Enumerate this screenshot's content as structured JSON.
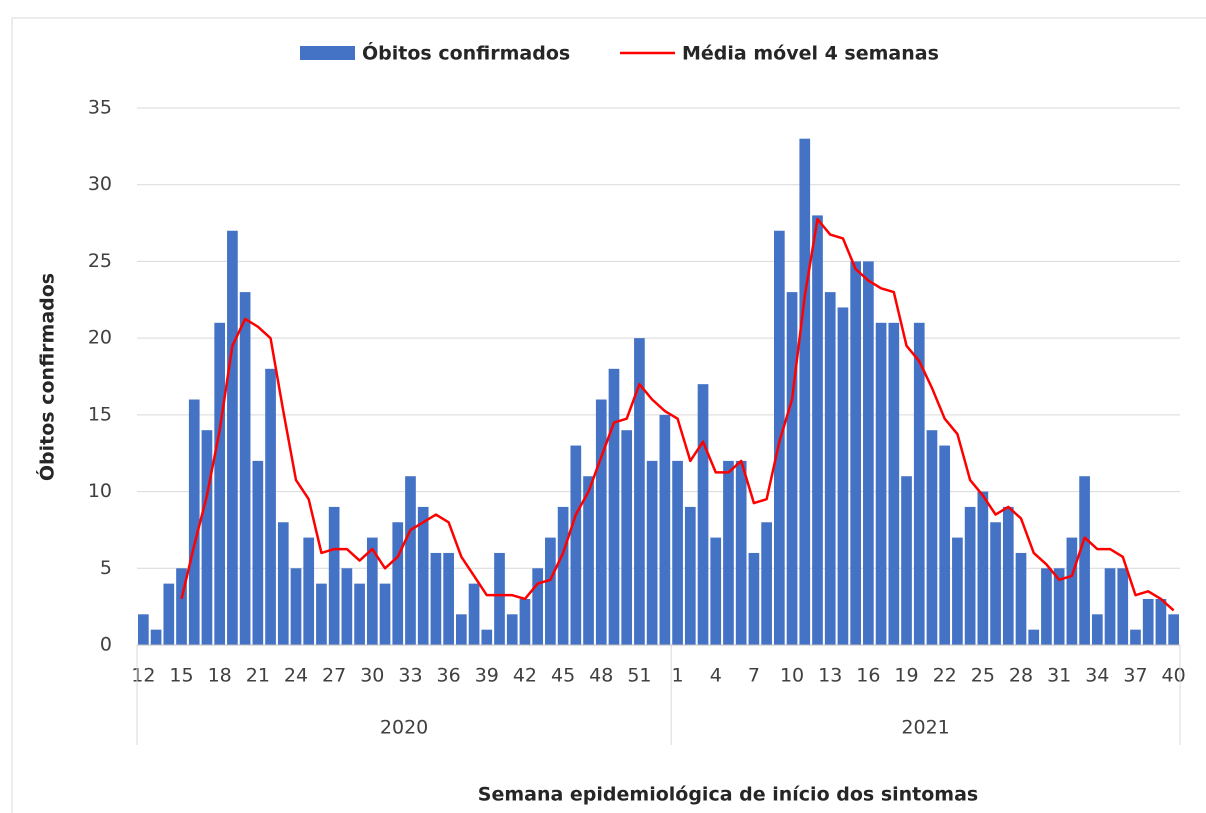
{
  "chart_data": {
    "type": "bar_line",
    "x_label": "Semana epidemiológica de início dos sintomas",
    "y_label": "Óbitos confirmados",
    "categories": [
      "12",
      null,
      null,
      "15",
      null,
      null,
      "18",
      null,
      null,
      "21",
      null,
      null,
      "24",
      null,
      null,
      "27",
      null,
      null,
      "30",
      null,
      null,
      "33",
      null,
      null,
      "36",
      null,
      null,
      "39",
      null,
      null,
      "42",
      null,
      null,
      "45",
      null,
      null,
      "48",
      null,
      null,
      "51",
      null,
      null,
      "1",
      null,
      null,
      "4",
      null,
      null,
      "7",
      null,
      null,
      "10",
      null,
      null,
      "13",
      null,
      null,
      "16",
      null,
      null,
      "19",
      null,
      null,
      "22",
      null,
      null,
      "25",
      null,
      null,
      "28",
      null,
      null,
      "31",
      null,
      null,
      "34",
      null,
      null,
      "37",
      null,
      null,
      "40"
    ],
    "x_groups": [
      {
        "label": "2020",
        "size": 42
      },
      {
        "label": "2021",
        "size": 40
      }
    ],
    "series": [
      {
        "name": "Óbitos confirmados",
        "kind": "bar",
        "color": "#4472c4",
        "values": [
          2,
          1,
          4,
          5,
          16,
          14,
          21,
          27,
          23,
          12,
          18,
          8,
          5,
          7,
          4,
          9,
          5,
          4,
          7,
          4,
          8,
          11,
          9,
          6,
          6,
          2,
          4,
          1,
          6,
          2,
          3,
          5,
          7,
          9,
          13,
          11,
          16,
          18,
          14,
          20,
          12,
          15,
          12,
          9,
          17,
          7,
          12,
          12,
          6,
          8,
          27,
          23,
          33,
          28,
          23,
          22,
          25,
          25,
          21,
          21,
          11,
          21,
          14,
          13,
          7,
          9,
          10,
          8,
          9,
          6,
          1,
          5,
          5,
          7,
          11,
          2,
          5,
          5,
          1,
          3,
          3,
          2
        ]
      },
      {
        "name": "Média móvel 4 semanas",
        "kind": "line",
        "color": "#ff0000",
        "values": [
          null,
          null,
          null,
          3,
          6.5,
          9.75,
          14,
          19.5,
          21.25,
          20.75,
          20,
          15.25,
          10.75,
          9.5,
          6,
          6.25,
          6.25,
          5.5,
          6.25,
          5,
          5.75,
          7.5,
          8,
          8.5,
          8,
          5.75,
          4.5,
          3.25,
          3.25,
          3.25,
          3,
          4,
          4.25,
          6,
          8.5,
          10,
          12.25,
          14.5,
          14.75,
          17,
          16,
          15.25,
          14.75,
          12,
          13.25,
          11.25,
          11.25,
          12,
          9.25,
          9.5,
          13.25,
          16,
          22.75,
          27.75,
          26.75,
          26.5,
          24.5,
          23.75,
          23.25,
          23,
          19.5,
          18.5,
          16.75,
          14.75,
          13.75,
          10.75,
          9.75,
          8.5,
          9,
          8.25,
          6,
          5.25,
          4.25,
          4.5,
          7,
          6.25,
          6.25,
          5.75,
          3.25,
          3.5,
          3,
          2.25
        ]
      }
    ],
    "ylim": [
      0,
      35
    ],
    "yticks": [
      0,
      5,
      10,
      15,
      20,
      25,
      30,
      35
    ],
    "grid": true,
    "legend": "top"
  }
}
